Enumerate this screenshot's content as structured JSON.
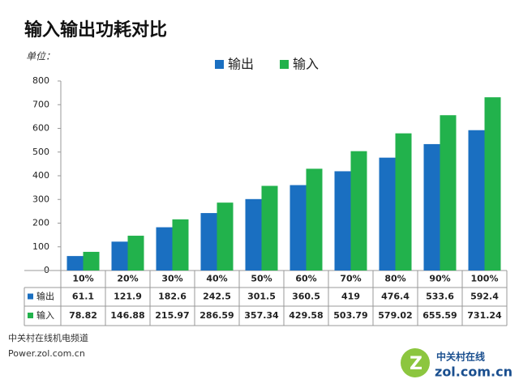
{
  "chart_data": {
    "type": "bar",
    "title": "输入输出功耗对比",
    "unit_label": "单位：",
    "categories": [
      "10%",
      "20%",
      "30%",
      "40%",
      "50%",
      "60%",
      "70%",
      "80%",
      "90%",
      "100%"
    ],
    "series": [
      {
        "name": "输出",
        "color": "#1a6fc1",
        "values": [
          61.1,
          121.9,
          182.6,
          242.5,
          301.5,
          360.5,
          419,
          476.4,
          533.6,
          592.4
        ]
      },
      {
        "name": "输入",
        "color": "#22b24c",
        "values": [
          78.82,
          146.88,
          215.97,
          286.59,
          357.34,
          429.58,
          503.79,
          579.02,
          655.59,
          731.24
        ]
      }
    ],
    "ylim": [
      0,
      800
    ],
    "yticks": [
      0,
      100,
      200,
      300,
      400,
      500,
      600,
      700,
      800
    ],
    "grid": false,
    "legend": "top"
  },
  "source": [
    "中关村在线机电频道",
    "Power.zol.com.cn"
  ],
  "logo": [
    "中关村在线",
    "zol.com.cn"
  ]
}
